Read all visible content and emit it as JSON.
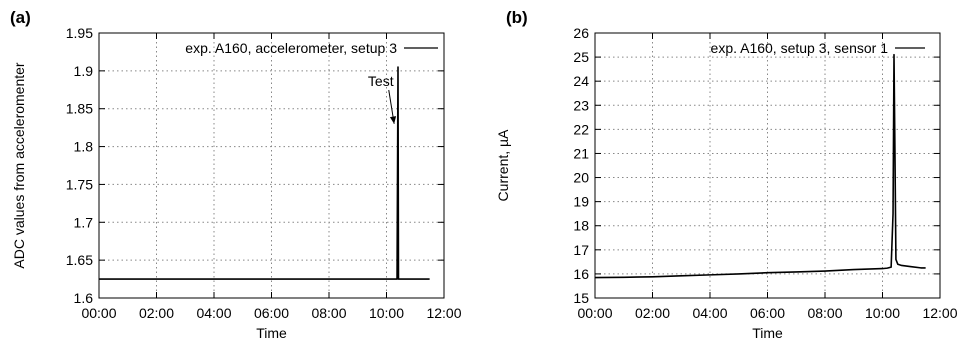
{
  "chart_data": [
    {
      "panel": "(a)",
      "type": "line",
      "title": "",
      "xlabel": "Time",
      "ylabel": "ADC values from acceleromenter",
      "xticks": [
        "00:00",
        "02:00",
        "04:00",
        "06:00",
        "08:00",
        "10:00",
        "12:00"
      ],
      "yticks": [
        "1.6",
        "1.65",
        "1.7",
        "1.75",
        "1.8",
        "1.85",
        "1.9",
        "1.95"
      ],
      "xlim": [
        0,
        720
      ],
      "ylim": [
        1.6,
        1.95
      ],
      "grid": true,
      "legend_position": "top-right",
      "series": [
        {
          "name": "exp. A160, accelerometer, setup 3",
          "x": [
            0,
            60,
            120,
            180,
            240,
            300,
            360,
            420,
            480,
            540,
            600,
            620,
            622,
            624,
            625,
            628,
            631,
            640,
            660,
            690
          ],
          "y": [
            1.625,
            1.625,
            1.625,
            1.625,
            1.625,
            1.625,
            1.625,
            1.625,
            1.625,
            1.625,
            1.625,
            1.625,
            1.625,
            1.905,
            1.625,
            1.625,
            1.625,
            1.625,
            1.625,
            1.625
          ]
        }
      ],
      "annotations": [
        {
          "text": "Test",
          "x": 588,
          "y": 1.88,
          "arrow_to": [
            616,
            1.83
          ]
        }
      ]
    },
    {
      "panel": "(b)",
      "type": "line",
      "title": "",
      "xlabel": "Time",
      "ylabel": "Current, µA",
      "xticks": [
        "00:00",
        "02:00",
        "04:00",
        "06:00",
        "08:00",
        "10:00",
        "12:00"
      ],
      "yticks": [
        "15",
        "16",
        "17",
        "18",
        "19",
        "20",
        "21",
        "22",
        "23",
        "24",
        "25",
        "26"
      ],
      "xlim": [
        0,
        720
      ],
      "ylim": [
        15,
        26
      ],
      "grid": true,
      "legend_position": "top-right",
      "series": [
        {
          "name": "exp. A160, setup 3, sensor 1",
          "x": [
            0,
            60,
            120,
            180,
            240,
            300,
            360,
            420,
            480,
            540,
            600,
            610,
            618,
            622,
            624,
            626,
            628,
            632,
            640,
            660,
            680,
            690
          ],
          "y": [
            15.85,
            15.86,
            15.88,
            15.92,
            15.96,
            16.0,
            16.05,
            16.08,
            16.12,
            16.18,
            16.22,
            16.24,
            16.28,
            18.5,
            25.1,
            21.0,
            16.6,
            16.4,
            16.35,
            16.3,
            16.25,
            16.25
          ]
        }
      ],
      "annotations": []
    }
  ]
}
